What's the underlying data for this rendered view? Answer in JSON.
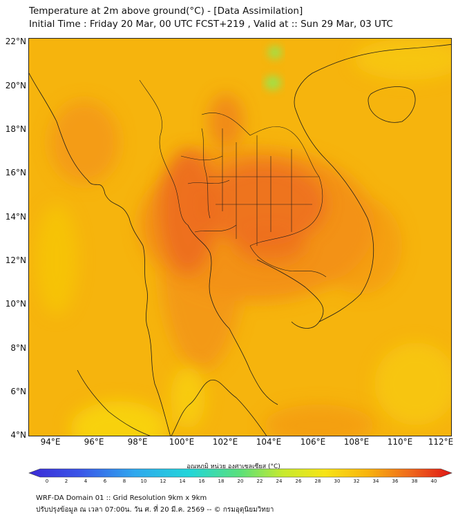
{
  "title": {
    "line1": "Temperature at 2m above ground(°C) - [Data Assimilation]",
    "line2": "Initial Time : Friday 20 Mar, 00 UTC FCST+219 , Valid at :: Sun 29 Mar, 03 UTC"
  },
  "map": {
    "lat_labels": [
      "22°N",
      "20°N",
      "18°N",
      "16°N",
      "14°N",
      "12°N",
      "10°N",
      "8°N",
      "6°N",
      "4°N"
    ],
    "lon_labels": [
      "94°E",
      "96°E",
      "98°E",
      "100°E",
      "102°E",
      "104°E",
      "106°E",
      "108°E",
      "110°E",
      "112°E"
    ],
    "colors": {
      "base": "#f6b40d",
      "warm": "#f39218",
      "hot": "#ec6a1f",
      "cool": "#f8d10c",
      "cold": "#9ee24a"
    }
  },
  "colorbar": {
    "title": "อุณหภูมิ หน่วย องศาเซลเซียส (°C)",
    "ticks": [
      "0",
      "2",
      "4",
      "6",
      "8",
      "10",
      "12",
      "14",
      "16",
      "18",
      "20",
      "22",
      "24",
      "26",
      "28",
      "30",
      "32",
      "34",
      "36",
      "38",
      "40"
    ],
    "range": [
      0,
      40
    ]
  },
  "footer": {
    "line1": "WRF-DA Domain 01 :: Grid Resolution 9km x 9km",
    "line2": "ปรับปรุงข้อมูล ณ เวลา 07:00น. วัน ศ. ที่ 20 มี.ค. 2569 -- © กรมอุตุนิยมวิทยา"
  }
}
